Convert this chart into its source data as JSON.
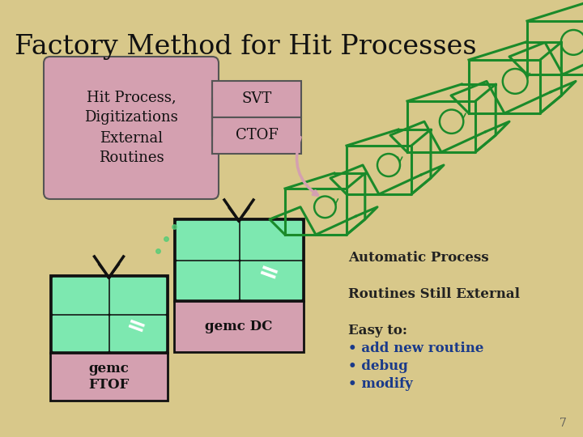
{
  "title": "Factory Method for Hit Processes",
  "title_fontsize": 24,
  "bg_color": "#d8c88a",
  "left_box_color": "#d4a0b0",
  "left_box_text": "Hit Process,\nDigitizations\nExternal\nRoutines",
  "svt_label": "SVT",
  "ctof_label": "CTOF",
  "auto_process_text": "Automatic Process",
  "routines_text": "Routines Still External",
  "easy_title": "Easy to:",
  "easy_bullets": [
    "• add new routine",
    "• debug",
    "• modify"
  ],
  "gemc_ftof_label": "gemc\nFTOF",
  "gemc_dc_label": "gemc DC",
  "gift_black": "#111111",
  "gift_green": "#7de8b0",
  "gift_pink": "#d4a0b0",
  "box_green": "#1a8a2a",
  "text_color": "#222222",
  "bullet_color": "#1a3a8a",
  "page_num": "7"
}
